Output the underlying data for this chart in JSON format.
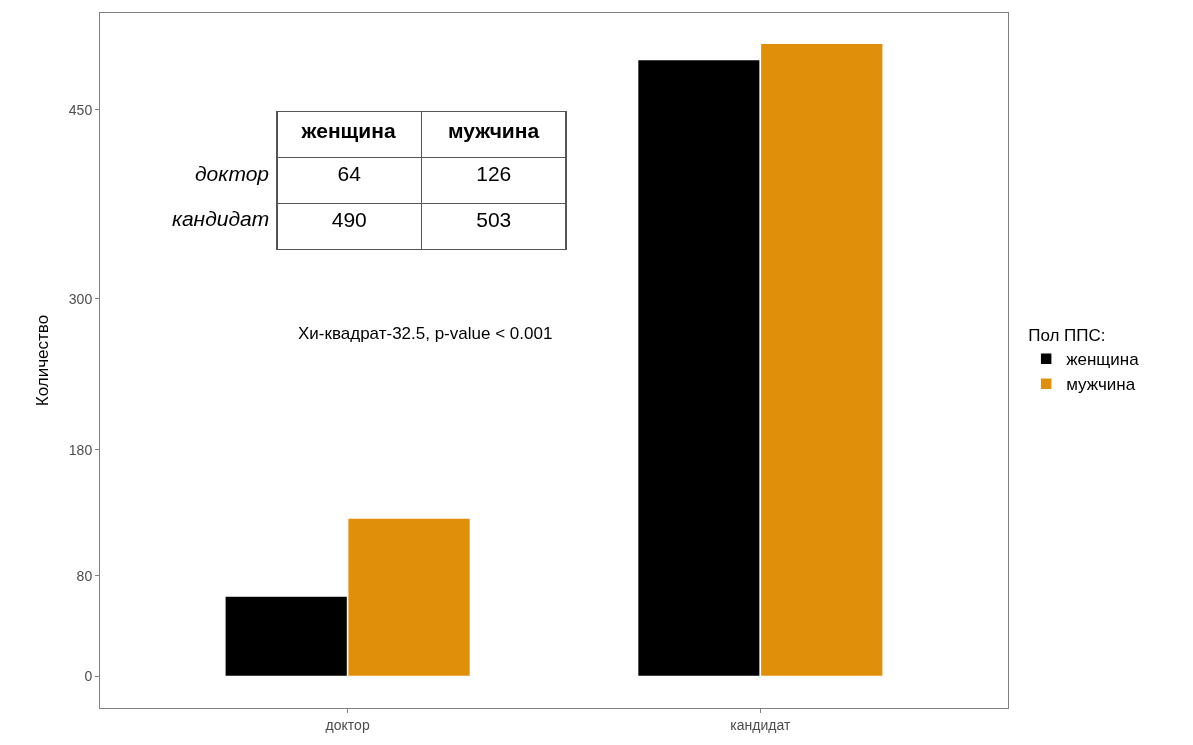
{
  "chart_data": {
    "type": "bar",
    "categories": [
      "доктор",
      "кандидат"
    ],
    "series": [
      {
        "name": "женщина",
        "color": "#000000",
        "values": [
          64,
          490
        ]
      },
      {
        "name": "мужчина",
        "color": "#e08f0b",
        "values": [
          126,
          503
        ]
      }
    ],
    "ylabel": "Количество",
    "ylim": [
      -25,
      527
    ],
    "yticks": [
      0,
      80,
      180,
      300,
      450
    ],
    "legend_title": "Пол ППС:",
    "legend": "right",
    "annotations": [
      "Хи-квадрат-32.5, p-value < 0.001",
      "женщина",
      "мужчина",
      "доктор",
      "64",
      "126",
      "кандидат",
      "490",
      "503"
    ]
  }
}
